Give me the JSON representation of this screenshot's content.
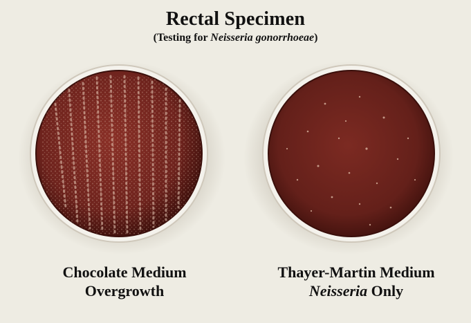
{
  "title": "Rectal Specimen",
  "subtitle": {
    "prefix": "(Testing for ",
    "organism": "Neisseria gonorrhoeae",
    "suffix": ")"
  },
  "plates": [
    {
      "line1": "Chocolate Medium",
      "line2": "Overgrowth"
    },
    {
      "line1": "Thayer-Martin Medium",
      "line2_genus": "Neisseria",
      "line2_suffix": " Only"
    }
  ],
  "colors": {
    "background": "#eeece3",
    "agar": "#7a2a22",
    "agar_dark": "#4a1410",
    "colony": "#d9b6a2"
  }
}
